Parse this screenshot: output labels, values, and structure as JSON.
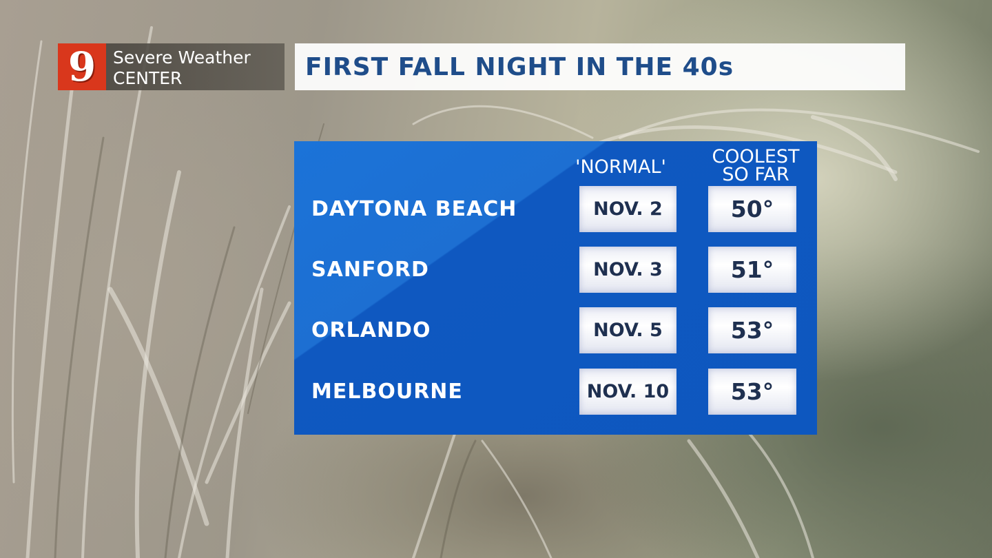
{
  "logo": {
    "number": "9",
    "line1": "Severe Weather",
    "line2": "CENTER",
    "colors": {
      "mark": "#d9371c",
      "text": "#ffffff"
    }
  },
  "title": "FIRST FALL NIGHT IN THE 40s",
  "table": {
    "headers": {
      "normal": "'NORMAL'",
      "coolest": "COOLEST SO FAR"
    },
    "rows": [
      {
        "city": "DAYTONA BEACH",
        "normal": "NOV. 2",
        "coolest": "50°"
      },
      {
        "city": "SANFORD",
        "normal": "NOV. 3",
        "coolest": "51°"
      },
      {
        "city": "ORLANDO",
        "normal": "NOV. 5",
        "coolest": "53°"
      },
      {
        "city": "MELBOURNE",
        "normal": "NOV. 10",
        "coolest": "53°"
      }
    ]
  },
  "colors": {
    "panel": "#1565c8",
    "title_text": "#1f4d8a",
    "box_text": "#1f3050"
  }
}
